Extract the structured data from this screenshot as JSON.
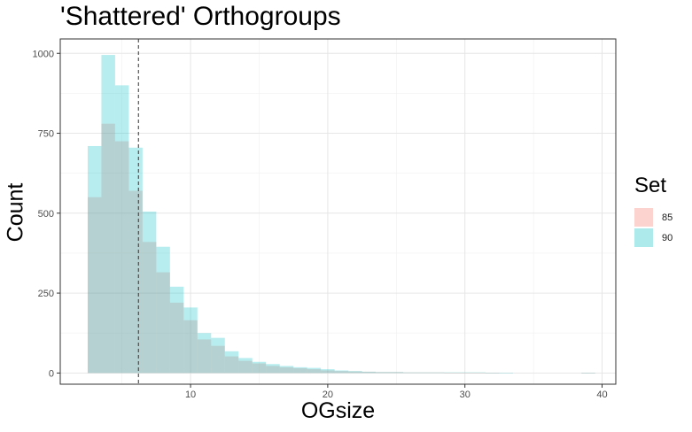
{
  "chart_data": {
    "type": "histogram",
    "title": "'Shattered' Orthogroups",
    "xlabel": "OGsize",
    "ylabel": "Count",
    "xlim": [
      0.5,
      41
    ],
    "ylim": [
      -35,
      1045
    ],
    "x_ticks": [
      10,
      20,
      30,
      40
    ],
    "y_ticks": [
      0,
      250,
      500,
      750,
      1000
    ],
    "bin_width": 1,
    "bins_start": 2.5,
    "grid": true,
    "reference_line_x": 6.2,
    "legend": {
      "title": "Set",
      "placement": "right",
      "entries": [
        {
          "label": "85",
          "color": "#F8766D"
        },
        {
          "label": "90",
          "color": "#00BFC4"
        }
      ]
    },
    "series": [
      {
        "name": "85",
        "color": "#F8766D",
        "values": [
          550,
          780,
          725,
          570,
          410,
          315,
          220,
          165,
          105,
          85,
          52,
          38,
          30,
          22,
          18,
          15,
          12,
          8,
          6,
          5,
          4,
          3,
          3,
          2,
          2,
          2,
          1,
          1,
          1,
          1,
          0,
          0,
          0,
          0,
          0,
          0,
          1
        ]
      },
      {
        "name": "90",
        "color": "#00BFC4",
        "values": [
          710,
          995,
          900,
          705,
          505,
          395,
          270,
          205,
          125,
          110,
          68,
          47,
          35,
          28,
          22,
          18,
          16,
          12,
          8,
          6,
          4,
          3,
          3,
          2,
          2,
          2,
          2,
          2,
          2,
          1,
          1,
          0,
          0,
          0,
          0,
          0,
          1
        ]
      }
    ]
  }
}
